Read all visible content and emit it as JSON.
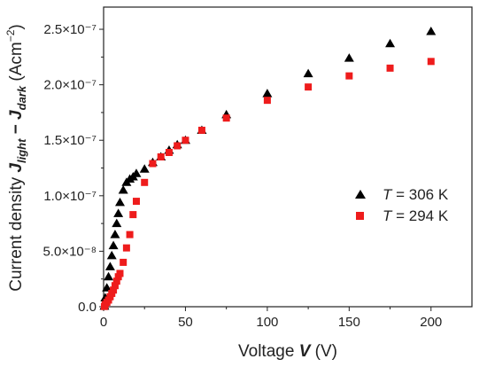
{
  "chart_data": {
    "type": "scatter",
    "xlabel": {
      "prefix": "Voltage ",
      "var": "V",
      "unit": " (V)"
    },
    "ylabel": {
      "prefix": "Current density ",
      "j1": "J",
      "j1sub": "light",
      "minus": " − ",
      "j2": "J",
      "j2sub": "dark",
      "unit_open": " (Acm",
      "unit_exp": "−2",
      "unit_close": ")"
    },
    "xlim": [
      0,
      225
    ],
    "ylim": [
      0,
      2.7e-07
    ],
    "x_ticks": [
      0,
      50,
      100,
      150,
      200
    ],
    "x_tick_labels": [
      "0",
      "50",
      "100",
      "150",
      "200"
    ],
    "y_ticks": [
      0,
      5e-08,
      1e-07,
      1.5e-07,
      2e-07,
      2.5e-07
    ],
    "y_tick_labels": [
      "0.0",
      "5.0×10⁻⁸",
      "1.0×10⁻⁷",
      "1.5×10⁻⁷",
      "2.0×10⁻⁷",
      "2.5×10⁻⁷"
    ],
    "legend_position": "center-right",
    "series": [
      {
        "name": "T = 306 K",
        "legend": {
          "var": "T",
          "rest": " = 306 K"
        },
        "marker": "triangle",
        "color": "#000000",
        "points": [
          [
            0.5,
            5e-10
          ],
          [
            1,
            8e-09
          ],
          [
            2,
            1.7e-08
          ],
          [
            3,
            2.7e-08
          ],
          [
            4,
            3.6e-08
          ],
          [
            5,
            4.6e-08
          ],
          [
            6,
            5.5e-08
          ],
          [
            7,
            6.5e-08
          ],
          [
            8,
            7.5e-08
          ],
          [
            9,
            8.4e-08
          ],
          [
            10,
            9.4e-08
          ],
          [
            12,
            1.05e-07
          ],
          [
            14,
            1.12e-07
          ],
          [
            16,
            1.15e-07
          ],
          [
            18,
            1.17e-07
          ],
          [
            20,
            1.2e-07
          ],
          [
            25,
            1.24e-07
          ],
          [
            30,
            1.3e-07
          ],
          [
            35,
            1.35e-07
          ],
          [
            40,
            1.41e-07
          ],
          [
            45,
            1.46e-07
          ],
          [
            50,
            1.5e-07
          ],
          [
            60,
            1.59e-07
          ],
          [
            75,
            1.73e-07
          ],
          [
            100,
            1.92e-07
          ],
          [
            125,
            2.1e-07
          ],
          [
            150,
            2.24e-07
          ],
          [
            175,
            2.37e-07
          ],
          [
            200,
            2.48e-07
          ]
        ]
      },
      {
        "name": "T = 294 K",
        "legend": {
          "var": "T",
          "rest": " = 294 K"
        },
        "marker": "square",
        "color": "#ee1c1c",
        "points": [
          [
            0.5,
            2e-10
          ],
          [
            1,
            2e-09
          ],
          [
            2,
            4e-09
          ],
          [
            3,
            6e-09
          ],
          [
            4,
            9e-09
          ],
          [
            5,
            1.2e-08
          ],
          [
            6,
            1.5e-08
          ],
          [
            7,
            1.9e-08
          ],
          [
            8,
            2.3e-08
          ],
          [
            9,
            2.7e-08
          ],
          [
            10,
            3e-08
          ],
          [
            12,
            4e-08
          ],
          [
            14,
            5.3e-08
          ],
          [
            16,
            6.5e-08
          ],
          [
            18,
            8.3e-08
          ],
          [
            20,
            9.5e-08
          ],
          [
            25,
            1.12e-07
          ],
          [
            30,
            1.29e-07
          ],
          [
            35,
            1.35e-07
          ],
          [
            40,
            1.39e-07
          ],
          [
            45,
            1.45e-07
          ],
          [
            50,
            1.5e-07
          ],
          [
            60,
            1.59e-07
          ],
          [
            75,
            1.7e-07
          ],
          [
            100,
            1.86e-07
          ],
          [
            125,
            1.98e-07
          ],
          [
            150,
            2.08e-07
          ],
          [
            175,
            2.15e-07
          ],
          [
            200,
            2.21e-07
          ]
        ]
      }
    ]
  }
}
